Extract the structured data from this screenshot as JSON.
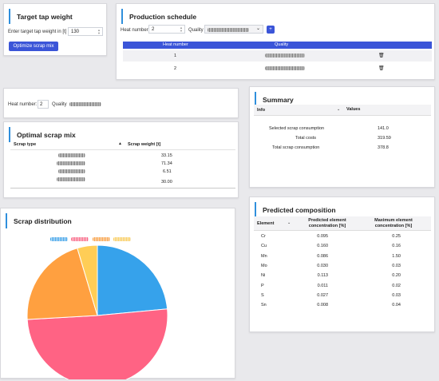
{
  "target": {
    "title": "Target tap weight",
    "field_label": "Enter target tap weight in [t]",
    "field_value": "130",
    "button_label": "Optimize scrap mix"
  },
  "schedule": {
    "title": "Production schedule",
    "heat_label": "Heat number:",
    "heat_value": "2",
    "quality_label": "Quality",
    "add_label": "+",
    "col_heat": "Heat number",
    "col_quality": "Quality",
    "rows": [
      {
        "heat": "1"
      },
      {
        "heat": "2"
      }
    ]
  },
  "heatinfo": {
    "heat_label": "Heat number:",
    "heat_value": "2",
    "quality_label": "Quality"
  },
  "mix": {
    "title": "Optimal scrap mix",
    "col_type": "Scrap type",
    "col_weight": "Scrap weight [t]",
    "weights": [
      "33.15",
      "71.34",
      "6.51",
      "30.00"
    ]
  },
  "summary": {
    "title": "Summary",
    "col_info": "Info",
    "col_values": "Values",
    "rows": [
      {
        "label": "Selected scrap consumption",
        "value": "141.0"
      },
      {
        "label": "Total costs",
        "value": "319.59"
      },
      {
        "label": "Total scrap consumption",
        "value": "378.8"
      }
    ]
  },
  "distribution": {
    "title": "Scrap distribution",
    "colors": [
      "#36a2eb",
      "#ff6384",
      "#ffa040",
      "#ffcd56"
    ],
    "chart_data": {
      "type": "pie",
      "values": [
        33.15,
        71.34,
        30.0,
        6.51
      ]
    }
  },
  "composition": {
    "title": "Predicted composition",
    "col_element": "Element",
    "col_predicted": "Predicted element concentration [%]",
    "col_max": "Maximum element concentration [%]",
    "rows": [
      {
        "el": "Cr",
        "pred": "0.095",
        "max": "0.25"
      },
      {
        "el": "Cu",
        "pred": "0.160",
        "max": "0.16"
      },
      {
        "el": "Mn",
        "pred": "0.086",
        "max": "1.50"
      },
      {
        "el": "Mo",
        "pred": "0.030",
        "max": "0.03"
      },
      {
        "el": "Ni",
        "pred": "0.113",
        "max": "0.20"
      },
      {
        "el": "P",
        "pred": "0.011",
        "max": "0.02"
      },
      {
        "el": "S",
        "pred": "0.027",
        "max": "0.03"
      },
      {
        "el": "Sn",
        "pred": "0.008",
        "max": "0.04"
      }
    ]
  }
}
